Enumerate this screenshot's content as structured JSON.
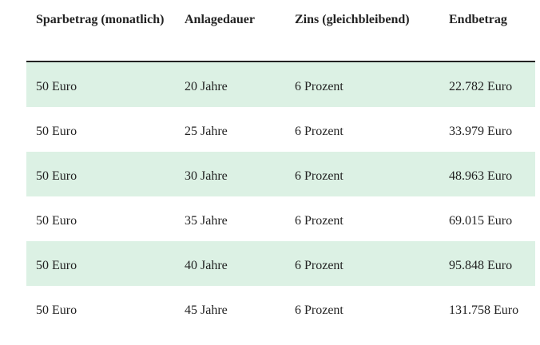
{
  "table": {
    "header": [
      "Sparbetrag (monatlich)",
      "Anlagedauer",
      "Zins (gleichbleibend)",
      "Endbetrag"
    ],
    "rows": [
      [
        "50 Euro",
        "20 Jahre",
        "6 Prozent",
        "22.782 Euro"
      ],
      [
        "50 Euro",
        "25 Jahre",
        "6 Prozent",
        "33.979 Euro"
      ],
      [
        "50 Euro",
        "30 Jahre",
        "6 Prozent",
        "48.963 Euro"
      ],
      [
        "50 Euro",
        "35 Jahre",
        "6 Prozent",
        "69.015 Euro"
      ],
      [
        "50 Euro",
        "40 Jahre",
        "6 Prozent",
        "95.848 Euro"
      ],
      [
        "50 Euro",
        "45 Jahre",
        "6 Prozent",
        "131.758 Euro"
      ]
    ]
  }
}
